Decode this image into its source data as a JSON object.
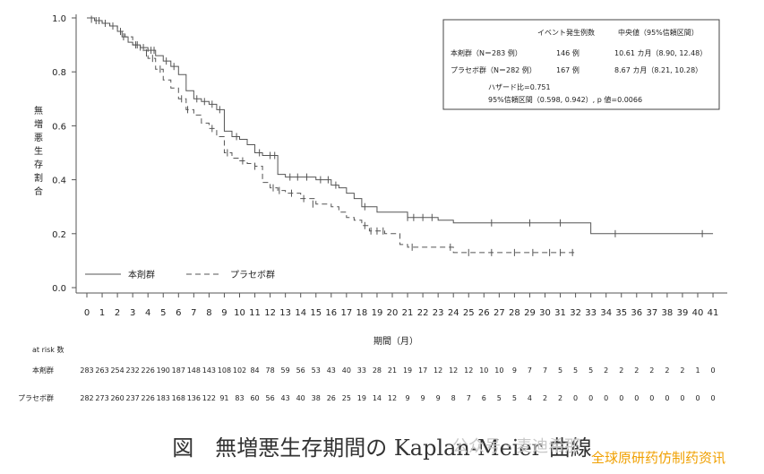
{
  "chart_data": {
    "type": "line",
    "subtype": "kaplan-meier",
    "ylabel": "無増悪生存割合",
    "xlabel": "期間（月）",
    "xlim": [
      0,
      41
    ],
    "ylim": [
      0,
      1.0
    ],
    "yticks": [
      "0.0",
      "0.2",
      "0.4",
      "0.6",
      "0.8",
      "1.0"
    ],
    "xticks": [
      "0",
      "1",
      "2",
      "3",
      "4",
      "5",
      "6",
      "7",
      "8",
      "9",
      "10",
      "11",
      "12",
      "13",
      "14",
      "15",
      "16",
      "17",
      "18",
      "19",
      "20",
      "21",
      "22",
      "23",
      "24",
      "25",
      "26",
      "27",
      "28",
      "29",
      "30",
      "31",
      "32",
      "33",
      "34",
      "35",
      "36",
      "37",
      "38",
      "39",
      "40",
      "41"
    ],
    "legend": {
      "placement": "bottom-left"
    },
    "series": [
      {
        "name": "本剤群",
        "style": "solid",
        "color": "#555555",
        "x": [
          0,
          0.5,
          1.0,
          1.5,
          2.0,
          2.3,
          2.7,
          3.0,
          3.5,
          4.0,
          4.5,
          5.0,
          5.5,
          6.0,
          6.5,
          7.0,
          7.5,
          8.0,
          8.5,
          9.0,
          9.5,
          10.0,
          10.5,
          11.0,
          11.5,
          12.0,
          12.5,
          13.0,
          14.0,
          15.0,
          16.0,
          16.5,
          17.0,
          17.5,
          18.0,
          19.0,
          20.0,
          21.0,
          22.0,
          23.0,
          24.0,
          32.0,
          33.0,
          41.0
        ],
        "y": [
          1.0,
          0.99,
          0.98,
          0.97,
          0.95,
          0.93,
          0.91,
          0.9,
          0.89,
          0.88,
          0.86,
          0.84,
          0.82,
          0.79,
          0.73,
          0.7,
          0.69,
          0.68,
          0.66,
          0.58,
          0.56,
          0.55,
          0.53,
          0.5,
          0.49,
          0.49,
          0.42,
          0.41,
          0.41,
          0.4,
          0.38,
          0.37,
          0.35,
          0.33,
          0.3,
          0.28,
          0.28,
          0.26,
          0.26,
          0.25,
          0.24,
          0.24,
          0.2,
          0.2
        ],
        "censors": [
          [
            0.3,
            0.995
          ],
          [
            0.8,
            0.99
          ],
          [
            1.7,
            0.97
          ],
          [
            2.4,
            0.93
          ],
          [
            3.2,
            0.9
          ],
          [
            3.7,
            0.89
          ],
          [
            4.2,
            0.88
          ],
          [
            4.4,
            0.88
          ],
          [
            5.2,
            0.84
          ],
          [
            5.7,
            0.82
          ],
          [
            7.2,
            0.7
          ],
          [
            7.7,
            0.69
          ],
          [
            8.2,
            0.68
          ],
          [
            8.7,
            0.66
          ],
          [
            9.8,
            0.56
          ],
          [
            11.3,
            0.5
          ],
          [
            12.0,
            0.49
          ],
          [
            12.3,
            0.49
          ],
          [
            13.3,
            0.41
          ],
          [
            13.8,
            0.41
          ],
          [
            14.4,
            0.41
          ],
          [
            15.3,
            0.4
          ],
          [
            15.8,
            0.4
          ],
          [
            16.3,
            0.38
          ],
          [
            18.2,
            0.3
          ],
          [
            21.0,
            0.26
          ],
          [
            21.4,
            0.26
          ],
          [
            22.0,
            0.26
          ],
          [
            22.6,
            0.26
          ],
          [
            26.5,
            0.24
          ],
          [
            29.0,
            0.24
          ],
          [
            31.0,
            0.24
          ],
          [
            34.6,
            0.2
          ],
          [
            40.3,
            0.2
          ]
        ]
      },
      {
        "name": "プラセボ群",
        "style": "dashed",
        "color": "#555555",
        "x": [
          0,
          0.5,
          1.0,
          1.5,
          2.0,
          2.5,
          3.0,
          3.5,
          4.0,
          4.5,
          5.0,
          5.5,
          6.0,
          6.5,
          7.0,
          7.5,
          8.0,
          8.5,
          9.0,
          9.5,
          10.0,
          10.5,
          11.0,
          11.5,
          12.0,
          12.5,
          13.0,
          14.0,
          15.0,
          16.0,
          16.5,
          17.0,
          17.5,
          18.0,
          18.5,
          19.0,
          19.5,
          20.0,
          20.5,
          21.0,
          22.0,
          23.0,
          24.0,
          25.0,
          32.0
        ],
        "y": [
          1.0,
          0.99,
          0.98,
          0.97,
          0.95,
          0.93,
          0.9,
          0.88,
          0.85,
          0.81,
          0.77,
          0.74,
          0.7,
          0.66,
          0.64,
          0.61,
          0.59,
          0.56,
          0.5,
          0.48,
          0.47,
          0.46,
          0.45,
          0.39,
          0.37,
          0.36,
          0.35,
          0.33,
          0.31,
          0.3,
          0.28,
          0.26,
          0.25,
          0.23,
          0.21,
          0.21,
          0.2,
          0.2,
          0.16,
          0.15,
          0.15,
          0.15,
          0.13,
          0.13,
          0.13
        ],
        "censors": [
          [
            0.6,
            0.99
          ],
          [
            1.2,
            0.98
          ],
          [
            2.2,
            0.95
          ],
          [
            3.3,
            0.9
          ],
          [
            3.9,
            0.87
          ],
          [
            4.3,
            0.85
          ],
          [
            4.8,
            0.81
          ],
          [
            6.2,
            0.7
          ],
          [
            6.6,
            0.66
          ],
          [
            8.2,
            0.59
          ],
          [
            9.2,
            0.5
          ],
          [
            10.2,
            0.47
          ],
          [
            11.0,
            0.45
          ],
          [
            12.2,
            0.37
          ],
          [
            12.6,
            0.36
          ],
          [
            13.4,
            0.35
          ],
          [
            14.2,
            0.33
          ],
          [
            14.8,
            0.31
          ],
          [
            18.2,
            0.23
          ],
          [
            18.6,
            0.21
          ],
          [
            19.0,
            0.21
          ],
          [
            19.4,
            0.21
          ],
          [
            21.3,
            0.15
          ],
          [
            23.8,
            0.15
          ],
          [
            25.0,
            0.13
          ],
          [
            26.5,
            0.13
          ],
          [
            28.0,
            0.13
          ],
          [
            29.2,
            0.13
          ],
          [
            30.3,
            0.13
          ],
          [
            31.0,
            0.13
          ],
          [
            31.8,
            0.13
          ]
        ]
      }
    ],
    "table": {
      "header": [
        "イベント発生例数",
        "中央値（95%信頼区間）"
      ],
      "rows": [
        {
          "label": "本剤群（N＝283 例）",
          "events": "146 例",
          "median": "10.61 カ月（8.90, 12.48）"
        },
        {
          "label": "プラセボ群（N＝282 例）",
          "events": "167 例",
          "median": "8.67 カ月（8.21, 10.28）"
        }
      ],
      "hr_line": "ハザード比=0.751",
      "ci_line": "95%信頼区間（0.598, 0.942）, p 値=0.0066"
    },
    "at_risk": {
      "title": "at risk 数",
      "rows": [
        {
          "label": "本剤群",
          "values": [
            "283",
            "263",
            "254",
            "232",
            "226",
            "190",
            "187",
            "148",
            "143",
            "108",
            "102",
            "84",
            "78",
            "59",
            "56",
            "53",
            "43",
            "40",
            "33",
            "28",
            "21",
            "19",
            "17",
            "12",
            "12",
            "12",
            "10",
            "10",
            "9",
            "7",
            "7",
            "5",
            "5",
            "5",
            "2",
            "2",
            "2",
            "2",
            "2",
            "2",
            "1",
            "0"
          ]
        },
        {
          "label": "プラセボ群",
          "values": [
            "282",
            "273",
            "260",
            "237",
            "226",
            "183",
            "168",
            "136",
            "122",
            "91",
            "83",
            "60",
            "56",
            "43",
            "40",
            "38",
            "26",
            "25",
            "19",
            "14",
            "12",
            "9",
            "9",
            "9",
            "8",
            "7",
            "6",
            "5",
            "5",
            "4",
            "2",
            "2",
            "0",
            "0",
            "0",
            "0",
            "0",
            "0",
            "0",
            "0",
            "0",
            "0"
          ]
        }
      ]
    }
  },
  "caption": "図　無増悪生存期間の Kaplan-Meier 曲線",
  "watermark": {
    "line1": "公众号 · 麦迪希那",
    "line2": "全球原研药仿制药资讯"
  }
}
